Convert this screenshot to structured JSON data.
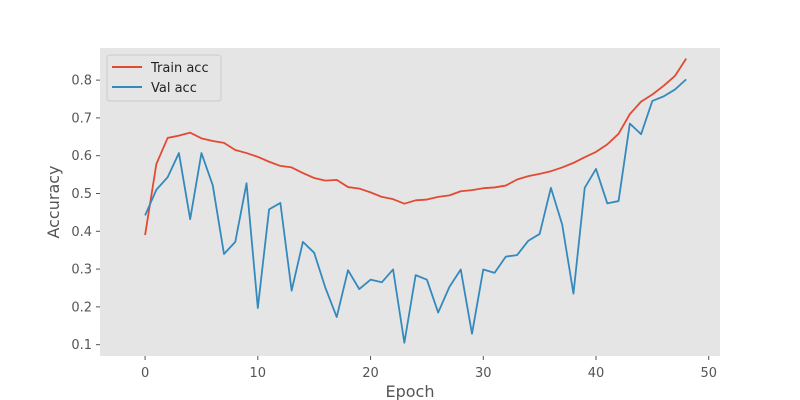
{
  "chart_data": {
    "type": "line",
    "xlabel": "Epoch",
    "ylabel": "Accuracy",
    "xlim": [
      -4,
      51
    ],
    "ylim": [
      0.07,
      0.885
    ],
    "xticks": [
      0,
      10,
      20,
      30,
      40,
      50
    ],
    "yticks": [
      0.1,
      0.2,
      0.3,
      0.4,
      0.5,
      0.6,
      0.7,
      0.8
    ],
    "grid": false,
    "legend_position": "top-left",
    "background": "#e5e5e5",
    "x": [
      0,
      1,
      2,
      3,
      4,
      5,
      6,
      7,
      8,
      9,
      10,
      11,
      12,
      13,
      14,
      15,
      16,
      17,
      18,
      19,
      20,
      21,
      22,
      23,
      24,
      25,
      26,
      27,
      28,
      29,
      30,
      31,
      32,
      33,
      34,
      35,
      36,
      37,
      38,
      39,
      40,
      41,
      42,
      43,
      44,
      45,
      46,
      47,
      48
    ],
    "series": [
      {
        "name": "Train acc",
        "color": "#e24a33",
        "values": [
          0.39,
          0.578,
          0.647,
          0.653,
          0.661,
          0.646,
          0.639,
          0.634,
          0.615,
          0.607,
          0.597,
          0.584,
          0.573,
          0.569,
          0.554,
          0.541,
          0.534,
          0.536,
          0.517,
          0.513,
          0.503,
          0.491,
          0.485,
          0.473,
          0.482,
          0.484,
          0.491,
          0.495,
          0.506,
          0.509,
          0.514,
          0.516,
          0.521,
          0.537,
          0.546,
          0.552,
          0.559,
          0.569,
          0.581,
          0.596,
          0.61,
          0.63,
          0.658,
          0.71,
          0.743,
          0.762,
          0.785,
          0.811,
          0.857
        ]
      },
      {
        "name": "Val acc",
        "color": "#348abd",
        "values": [
          0.442,
          0.51,
          0.543,
          0.607,
          0.432,
          0.607,
          0.522,
          0.34,
          0.372,
          0.527,
          0.197,
          0.458,
          0.475,
          0.243,
          0.372,
          0.343,
          0.25,
          0.173,
          0.297,
          0.247,
          0.272,
          0.265,
          0.299,
          0.105,
          0.284,
          0.272,
          0.185,
          0.253,
          0.299,
          0.129,
          0.299,
          0.29,
          0.333,
          0.337,
          0.375,
          0.393,
          0.515,
          0.418,
          0.235,
          0.515,
          0.565,
          0.474,
          0.48,
          0.685,
          0.657,
          0.745,
          0.757,
          0.775,
          0.802
        ]
      }
    ]
  }
}
